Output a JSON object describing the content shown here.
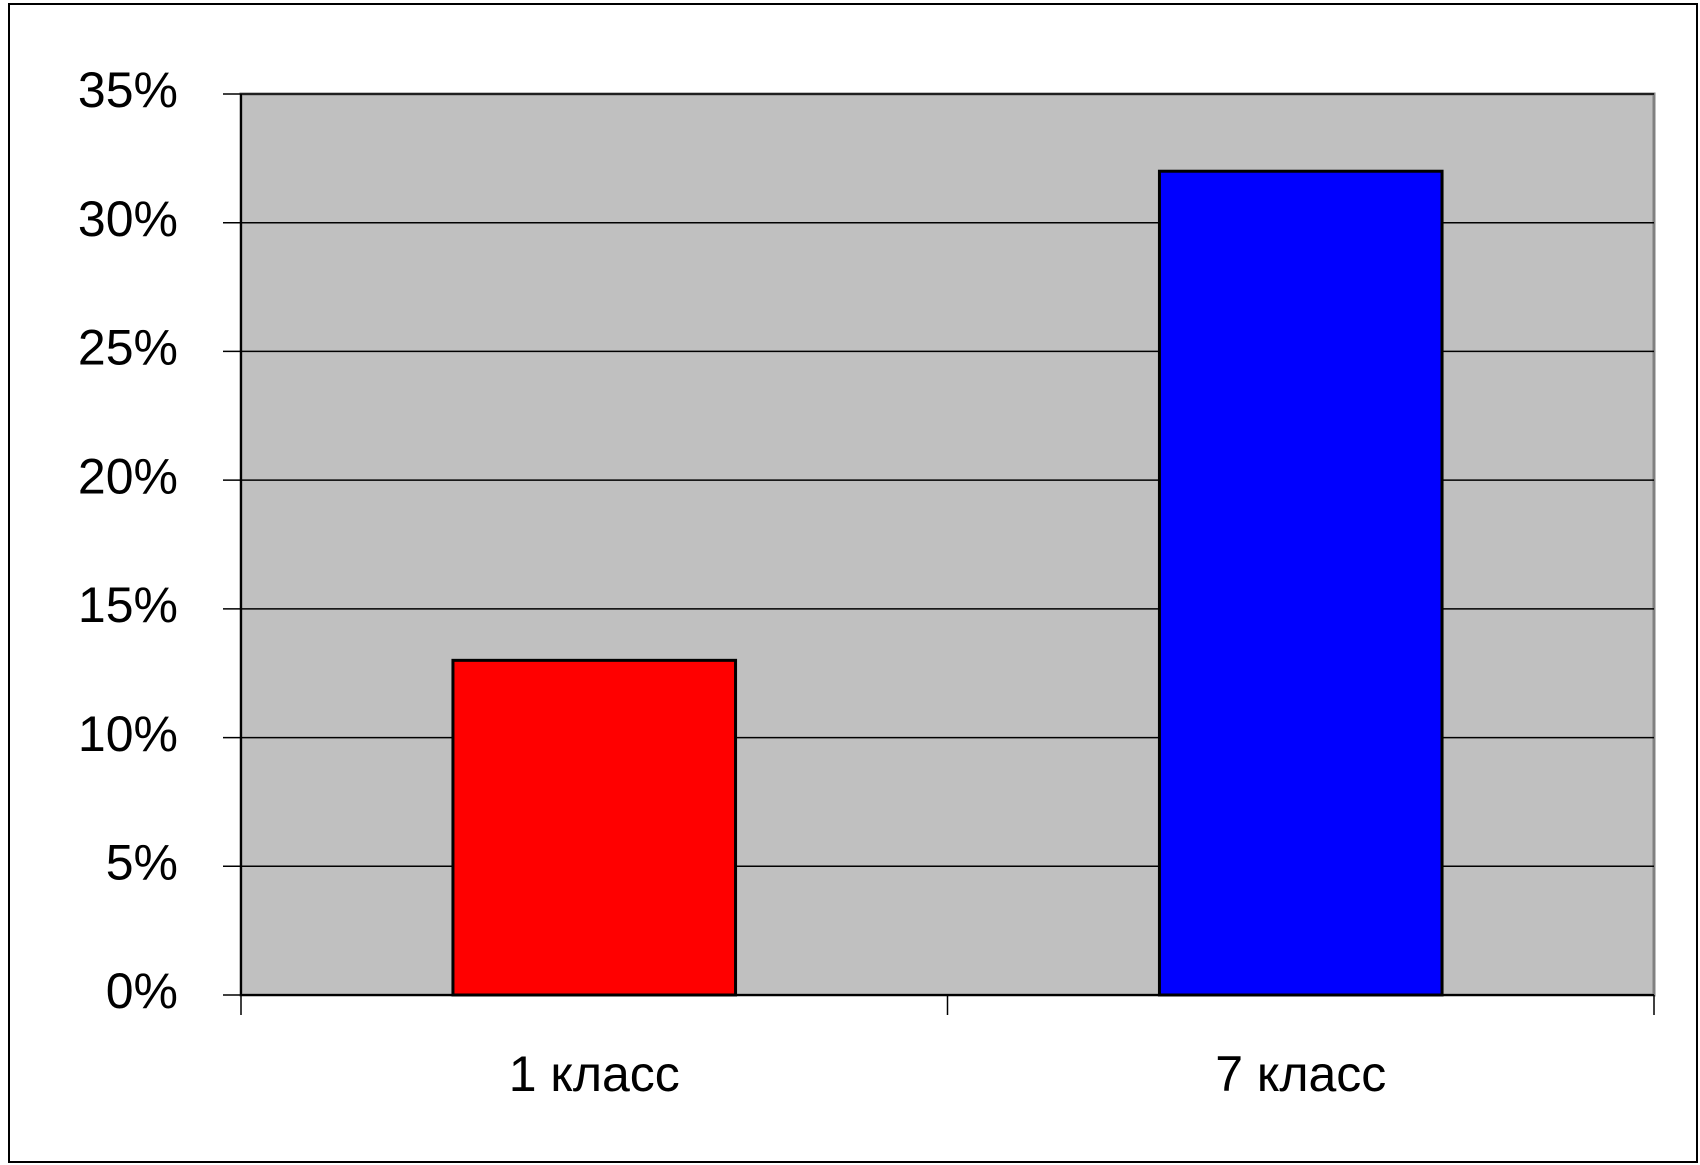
{
  "chart_data": {
    "type": "bar",
    "categories": [
      "1 класс",
      "7 класс"
    ],
    "values": [
      13,
      32
    ],
    "colors": [
      "#ff0000",
      "#0000ff"
    ],
    "ylim": [
      0,
      35
    ],
    "yticks": [
      {
        "value": 0,
        "label": "0%"
      },
      {
        "value": 5,
        "label": "5%"
      },
      {
        "value": 10,
        "label": "10%"
      },
      {
        "value": 15,
        "label": "15%"
      },
      {
        "value": 20,
        "label": "20%"
      },
      {
        "value": 25,
        "label": "25%"
      },
      {
        "value": 30,
        "label": "30%"
      },
      {
        "value": 35,
        "label": "35%"
      }
    ],
    "grid": true
  }
}
